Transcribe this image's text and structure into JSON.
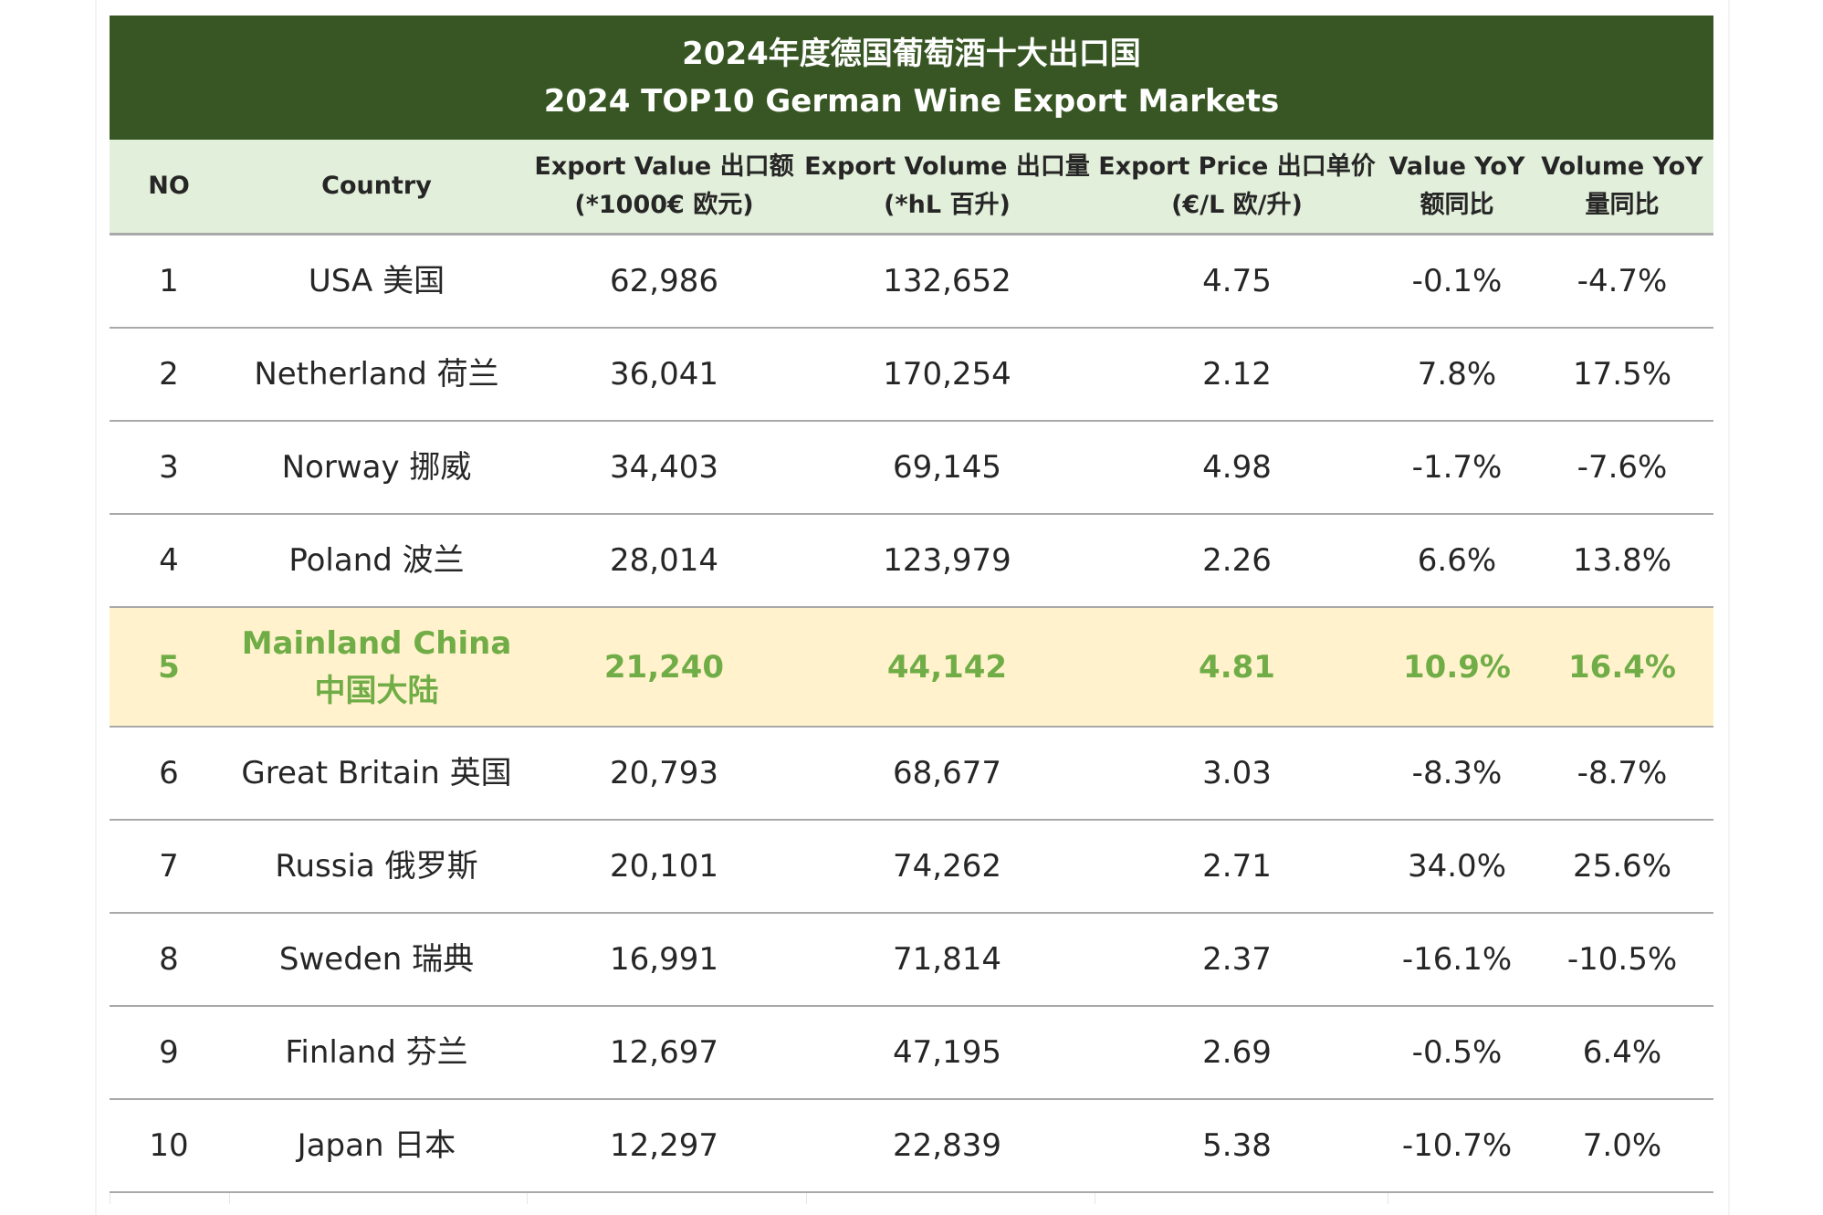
{
  "table": {
    "title_cn": "2024年度德国葡萄酒十大出口国",
    "title_en": "2024 TOP10 German Wine Export Markets",
    "headers": [
      {
        "line1": "NO",
        "line2": ""
      },
      {
        "line1": "Country",
        "line2": ""
      },
      {
        "line1": "Export Value 出口额",
        "line2": "(*1000€ 欧元)"
      },
      {
        "line1": "Export Volume 出口量",
        "line2": "(*hL 百升)"
      },
      {
        "line1": "Export Price 出口单价",
        "line2": "(€/L 欧/升)"
      },
      {
        "line1": "Value YoY",
        "line2": "额同比"
      },
      {
        "line1": "Volume YoY",
        "line2": "量同比"
      }
    ],
    "rows": [
      {
        "no": "1",
        "country": "USA 美国",
        "country2": "",
        "value": "62,986",
        "volume": "132,652",
        "price": "4.75",
        "value_yoy": "-0.1%",
        "volume_yoy": "-4.7%"
      },
      {
        "no": "2",
        "country": "Netherland 荷兰",
        "country2": "",
        "value": "36,041",
        "volume": "170,254",
        "price": "2.12",
        "value_yoy": "7.8%",
        "volume_yoy": "17.5%"
      },
      {
        "no": "3",
        "country": "Norway 挪威",
        "country2": "",
        "value": "34,403",
        "volume": "69,145",
        "price": "4.98",
        "value_yoy": "-1.7%",
        "volume_yoy": "-7.6%"
      },
      {
        "no": "4",
        "country": "Poland 波兰",
        "country2": "",
        "value": "28,014",
        "volume": "123,979",
        "price": "2.26",
        "value_yoy": "6.6%",
        "volume_yoy": "13.8%"
      },
      {
        "no": "5",
        "country": "Mainland China",
        "country2": "中国大陆",
        "value": "21,240",
        "volume": "44,142",
        "price": "4.81",
        "value_yoy": "10.9%",
        "volume_yoy": "16.4%"
      },
      {
        "no": "6",
        "country": "Great Britain 英国",
        "country2": "",
        "value": "20,793",
        "volume": "68,677",
        "price": "3.03",
        "value_yoy": "-8.3%",
        "volume_yoy": "-8.7%"
      },
      {
        "no": "7",
        "country": "Russia 俄罗斯",
        "country2": "",
        "value": "20,101",
        "volume": "74,262",
        "price": "2.71",
        "value_yoy": "34.0%",
        "volume_yoy": "25.6%"
      },
      {
        "no": "8",
        "country": "Sweden 瑞典",
        "country2": "",
        "value": "16,991",
        "volume": "71,814",
        "price": "2.37",
        "value_yoy": "-16.1%",
        "volume_yoy": "-10.5%"
      },
      {
        "no": "9",
        "country": "Finland 芬兰",
        "country2": "",
        "value": "12,697",
        "volume": "47,195",
        "price": "2.69",
        "value_yoy": "-0.5%",
        "volume_yoy": "6.4%"
      },
      {
        "no": "10",
        "country": "Japan 日本",
        "country2": "",
        "value": "12,297",
        "volume": "22,839",
        "price": "5.38",
        "value_yoy": "-10.7%",
        "volume_yoy": "7.0%"
      }
    ],
    "colors": {
      "title_bg": "#375623",
      "header_bg": "#e2efda",
      "highlight_bg": "#fff2cc",
      "highlight_text": "#70ad47"
    }
  }
}
